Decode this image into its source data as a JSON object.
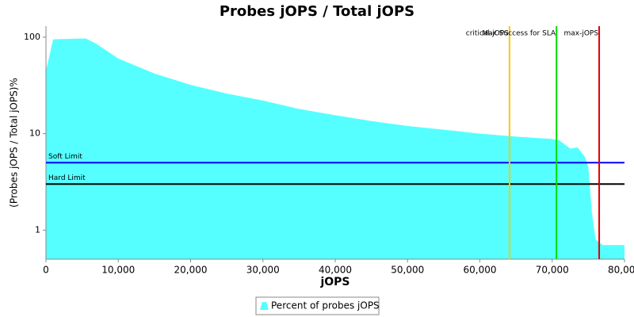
{
  "chart_data": {
    "type": "area",
    "title": "Probes jOPS / Total jOPS",
    "x_label": "jOPS",
    "y_label": "(Probes jOPS / Total jOPS)%",
    "y_scale": "log",
    "xlim": [
      0,
      80000
    ],
    "ylim": [
      0.5,
      130
    ],
    "xticks": [
      0,
      {
        "value": 10000,
        "label": "10,000"
      },
      {
        "value": 20000,
        "label": "20,000"
      },
      {
        "value": 30000,
        "label": "30,000"
      },
      {
        "value": 40000,
        "label": "40,000"
      },
      {
        "value": 50000,
        "label": "50,000"
      },
      {
        "value": 60000,
        "label": "60,000"
      },
      {
        "value": 70000,
        "label": "70,000"
      },
      {
        "value": 80000,
        "label": "80,000"
      }
    ],
    "yticks": [
      1,
      10,
      100
    ],
    "series": [
      {
        "name": "Percent of probes jOPS",
        "color": "#55ffff",
        "x": [
          0,
          1000,
          5500,
          7000,
          10000,
          15000,
          20000,
          25000,
          30000,
          35000,
          40000,
          45000,
          50000,
          55000,
          60000,
          65000,
          70000,
          71000,
          72500,
          73500,
          74500,
          75000,
          75500,
          76000,
          77000,
          80000
        ],
        "values": [
          45,
          95,
          97,
          85,
          60,
          42,
          32,
          26,
          22,
          18,
          15.5,
          13.5,
          12,
          11,
          10,
          9.3,
          8.8,
          8.5,
          7,
          7.2,
          5.8,
          4.5,
          1.5,
          0.8,
          0.7,
          0.7
        ]
      }
    ],
    "horizontal_lines": [
      {
        "label": "Soft Limit",
        "value": 5,
        "color": "#0000ff"
      },
      {
        "label": "Hard Limit",
        "value": 3,
        "color": "#000000"
      }
    ],
    "vertical_lines": [
      {
        "label": "critical-jOPS",
        "value": 64100,
        "color": "#ffc800"
      },
      {
        "label": "Max Success for SLA",
        "value": 70600,
        "color": "#00dd00"
      },
      {
        "label": "max-jOPS",
        "value": 76500,
        "color": "#dd0000"
      }
    ]
  }
}
